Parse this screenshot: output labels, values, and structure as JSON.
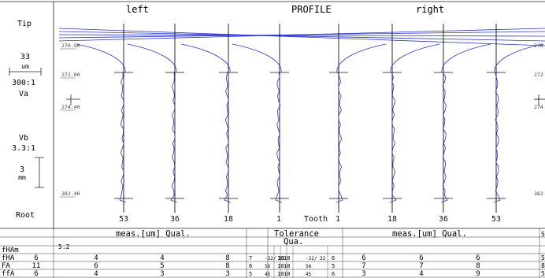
{
  "header": {
    "left": "left",
    "title": "PROFILE",
    "right": "right"
  },
  "sidebar": {
    "tip": "Tip",
    "scale_v_value": "33",
    "scale_v_unit": "um",
    "ratio_va": "300:1",
    "va": "Va",
    "vb": "Vb",
    "ratio_vb": "3.3:1",
    "scale_h_value": "3",
    "scale_h_unit": "mm",
    "root": "Root"
  },
  "chart_data": {
    "type": "line",
    "title": "PROFILE",
    "y_tick_labels": [
      "270.50",
      "272.00",
      "274.40",
      "282.40"
    ],
    "right_y_tick_labels": [
      "270",
      "272",
      "274",
      "282"
    ],
    "bottom_labels": [
      "53",
      "36",
      "18",
      "1",
      "Tooth",
      "1",
      "18",
      "36",
      "53"
    ],
    "flanks": [
      {
        "side": "left",
        "tooth": "53"
      },
      {
        "side": "left",
        "tooth": "36"
      },
      {
        "side": "left",
        "tooth": "18"
      },
      {
        "side": "left",
        "tooth": "1"
      },
      {
        "side": "right",
        "tooth": "1"
      },
      {
        "side": "right",
        "tooth": "18"
      },
      {
        "side": "right",
        "tooth": "36"
      },
      {
        "side": "right",
        "tooth": "53"
      }
    ],
    "trace_color": "#2b35c8",
    "axis_color": "#111111"
  },
  "table": {
    "header_left": "meas.[um]  Qual.",
    "header_mid": "Tolerance",
    "header_mid_sub": "Qua.",
    "header_right": "meas.[um]  Qual.",
    "header_right_edge": "5",
    "rows": [
      {
        "label": "fHAm",
        "left": [
          "5.2",
          "",
          "",
          ""
        ],
        "tol": [],
        "right": [
          "",
          "",
          ""
        ],
        "edge": ""
      },
      {
        "label": "fHA",
        "left": [
          "6",
          "4",
          "4",
          "8"
        ],
        "tol": [
          "7",
          "-32/ 32",
          "10",
          "10",
          "-32/ 32",
          "6"
        ],
        "right": [
          "6",
          "6",
          "6"
        ],
        "edge": "5"
      },
      {
        "label": "FA",
        "left": [
          "11",
          "6",
          "5",
          "8"
        ],
        "tol": [
          "6",
          "56",
          "10",
          "10",
          "56",
          "5"
        ],
        "right": [
          "7",
          "7",
          "8"
        ],
        "edge": "8"
      },
      {
        "label": "ffA",
        "left": [
          "6",
          "4",
          "3",
          "3"
        ],
        "tol": [
          "5",
          "45",
          "10",
          "10",
          "45",
          "6"
        ],
        "right": [
          "3",
          "4",
          "9"
        ],
        "edge": "5"
      }
    ]
  }
}
